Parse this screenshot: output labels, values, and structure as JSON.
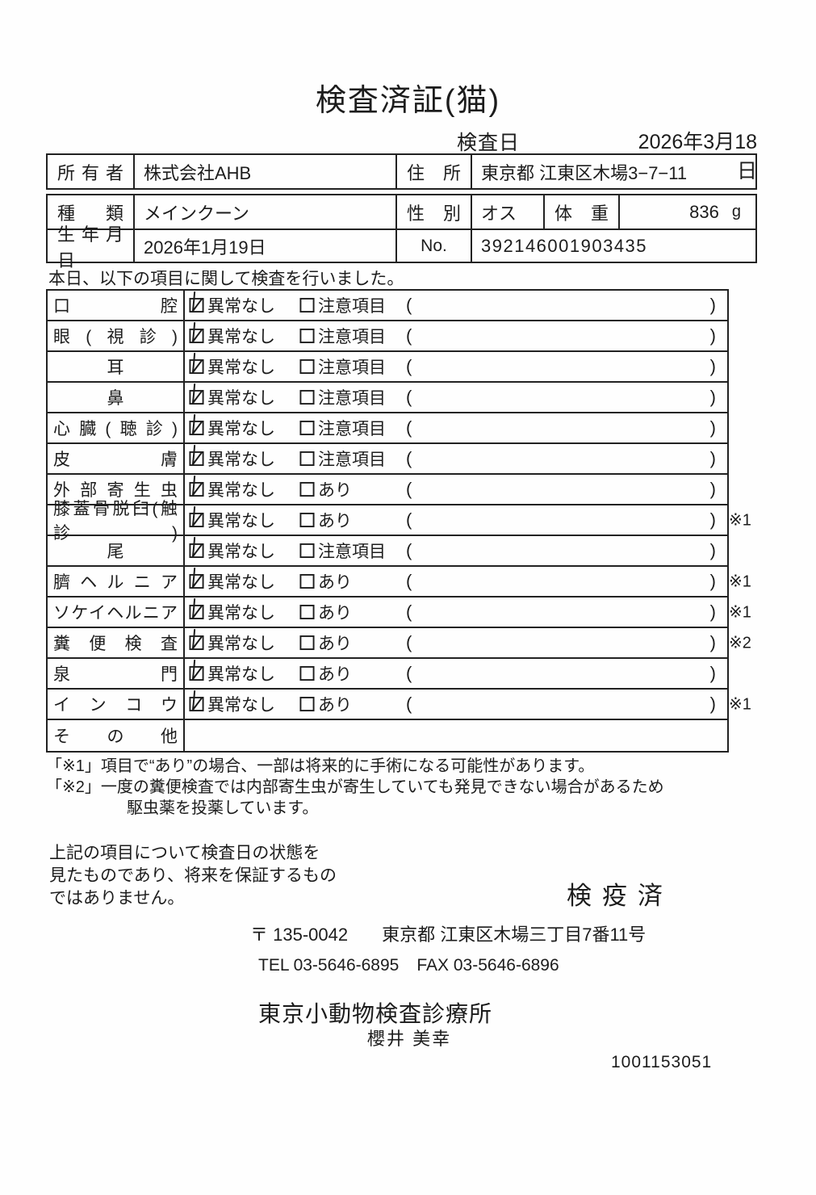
{
  "document": {
    "title": "検査済証(猫)",
    "exam_date_label": "検査日",
    "exam_date_value": "2026年3月18日"
  },
  "owner_table": {
    "owner_label": "所有者",
    "owner_value": "株式会社AHB",
    "address_label": "住所",
    "address_value": "東京都 江東区木場3−7−11"
  },
  "info_table": {
    "species_label": "種類",
    "species_value": "メインクーン",
    "sex_label": "性別",
    "sex_value": "オス",
    "weight_label": "体重",
    "weight_value": "836",
    "weight_unit": "g",
    "birth_label": "生年月日",
    "birth_value": "2026年1月19日",
    "no_label": "No.",
    "no_value": "392146001903435"
  },
  "intro_text": "本日、以下の項目に関して検査を行いました。",
  "exam_table": {
    "paren_open": "(",
    "paren_close": ")",
    "rows": [
      {
        "item": "口腔",
        "opt1": "異常なし",
        "opt1_checked": true,
        "opt2": "注意項目",
        "opt2_checked": false,
        "note": ""
      },
      {
        "item": "眼(視診)",
        "opt1": "異常なし",
        "opt1_checked": true,
        "opt2": "注意項目",
        "opt2_checked": false,
        "note": ""
      },
      {
        "item": "耳",
        "opt1": "異常なし",
        "opt1_checked": true,
        "opt2": "注意項目",
        "opt2_checked": false,
        "note": ""
      },
      {
        "item": "鼻",
        "opt1": "異常なし",
        "opt1_checked": true,
        "opt2": "注意項目",
        "opt2_checked": false,
        "note": ""
      },
      {
        "item": "心臓(聴診)",
        "opt1": "異常なし",
        "opt1_checked": true,
        "opt2": "注意項目",
        "opt2_checked": false,
        "note": ""
      },
      {
        "item": "皮膚",
        "opt1": "異常なし",
        "opt1_checked": true,
        "opt2": "注意項目",
        "opt2_checked": false,
        "note": ""
      },
      {
        "item": "外部寄生虫",
        "opt1": "異常なし",
        "opt1_checked": true,
        "opt2": "あり",
        "opt2_checked": false,
        "note": ""
      },
      {
        "item": "膝蓋骨脱臼(触診)",
        "opt1": "異常なし",
        "opt1_checked": true,
        "opt2": "あり",
        "opt2_checked": false,
        "note": "※1"
      },
      {
        "item": "尾",
        "opt1": "異常なし",
        "opt1_checked": true,
        "opt2": "注意項目",
        "opt2_checked": false,
        "note": ""
      },
      {
        "item": "臍ヘルニア",
        "opt1": "異常なし",
        "opt1_checked": true,
        "opt2": "あり",
        "opt2_checked": false,
        "note": "※1"
      },
      {
        "item": "ソケイヘルニア",
        "opt1": "異常なし",
        "opt1_checked": true,
        "opt2": "あり",
        "opt2_checked": false,
        "note": "※1"
      },
      {
        "item": "糞便検査",
        "opt1": "異常なし",
        "opt1_checked": true,
        "opt2": "あり",
        "opt2_checked": false,
        "note": "※2"
      },
      {
        "item": "泉門",
        "opt1": "異常なし",
        "opt1_checked": true,
        "opt2": "あり",
        "opt2_checked": false,
        "note": ""
      },
      {
        "item": "インコウ",
        "opt1": "異常なし",
        "opt1_checked": true,
        "opt2": "あり",
        "opt2_checked": false,
        "note": "※1"
      },
      {
        "item": "その他",
        "opt1": "",
        "opt1_checked": false,
        "opt2": "",
        "opt2_checked": false,
        "note": ""
      }
    ]
  },
  "footnotes": {
    "note1": "「※1」項目で“あり”の場合、一部は将来的に手術になる可能性があります。",
    "note2_line1": "「※2」一度の糞便検査では内部寄生虫が寄生していても発見できない場合があるため",
    "note2_line2": "駆虫薬を投薬しています。"
  },
  "disclaimer": {
    "line1": "上記の項目について検査日の状態を",
    "line2": "見たものであり、将来を保証するもの",
    "line3": "ではありません。"
  },
  "stamp": "検疫済",
  "contact": {
    "postal": "〒 135-0042",
    "address": "東京都 江東区木場三丁目7番11号",
    "tel": "TEL 03-5646-6895",
    "fax": "FAX 03-5646-6896"
  },
  "clinic": {
    "name": "東京小動物検査診療所",
    "vet": "櫻井 美幸"
  },
  "document_number": "1001153051"
}
